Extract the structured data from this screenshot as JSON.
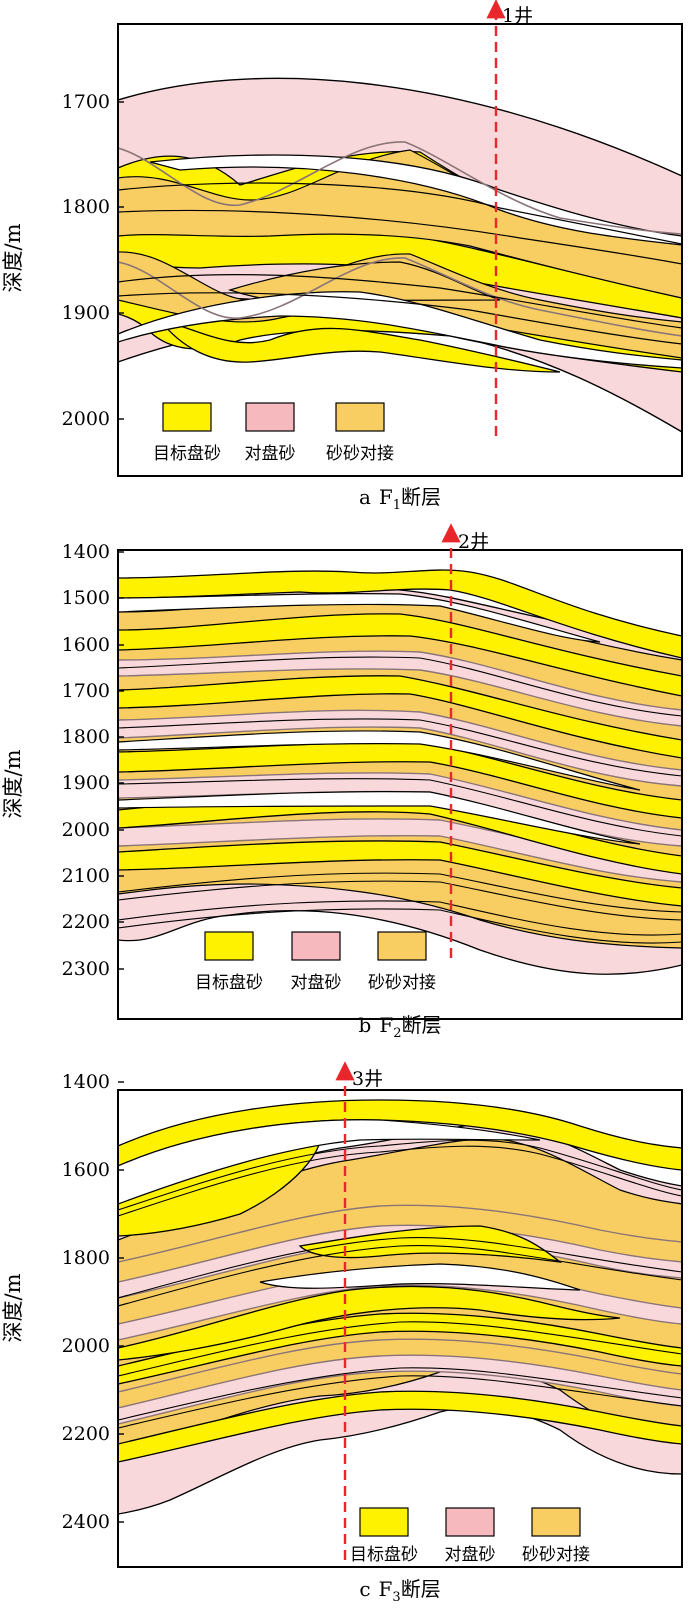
{
  "colors": {
    "target_sand": "#FFF200",
    "opposite_sand": "#F6B9BE",
    "sand_contact": "#F8CE63",
    "opposite_band_fill": "#F9D8DB",
    "well_line": "#E8262B",
    "frame": "#000000",
    "boundary": "#000000",
    "opposite_boundary": "#8A7478"
  },
  "legend_items": [
    {
      "label": "目标盘砂",
      "color": "#FFF200"
    },
    {
      "label": "对盘砂",
      "color": "#F6B9BE"
    },
    {
      "label": "砂砂对接",
      "color": "#F8CE63"
    }
  ],
  "panels": [
    {
      "id": "a",
      "caption_prefix": "a",
      "caption_fault": "F",
      "caption_sub": "1",
      "caption_suffix": "断层",
      "well_label": "1井",
      "ylabel": "深度/m",
      "y_ticks": [
        "1700",
        "1800",
        "1900",
        "2000"
      ],
      "depth_range": [
        1622,
        2030
      ]
    },
    {
      "id": "b",
      "caption_prefix": "b",
      "caption_fault": "F",
      "caption_sub": "2",
      "caption_suffix": "断层",
      "well_label": "2井",
      "ylabel": "深度/m",
      "y_ticks": [
        "1400",
        "1500",
        "1600",
        "1700",
        "1800",
        "1900",
        "2000",
        "2100",
        "2200",
        "2300"
      ],
      "depth_range": [
        1400,
        2365
      ]
    },
    {
      "id": "c",
      "caption_prefix": "c",
      "caption_fault": "F",
      "caption_sub": "3",
      "caption_suffix": "断层",
      "well_label": "3井",
      "ylabel": "深度/m",
      "y_ticks": [
        "1400",
        "1600",
        "1800",
        "2000",
        "2200",
        "2400"
      ],
      "depth_range": [
        1400,
        2460
      ]
    }
  ]
}
